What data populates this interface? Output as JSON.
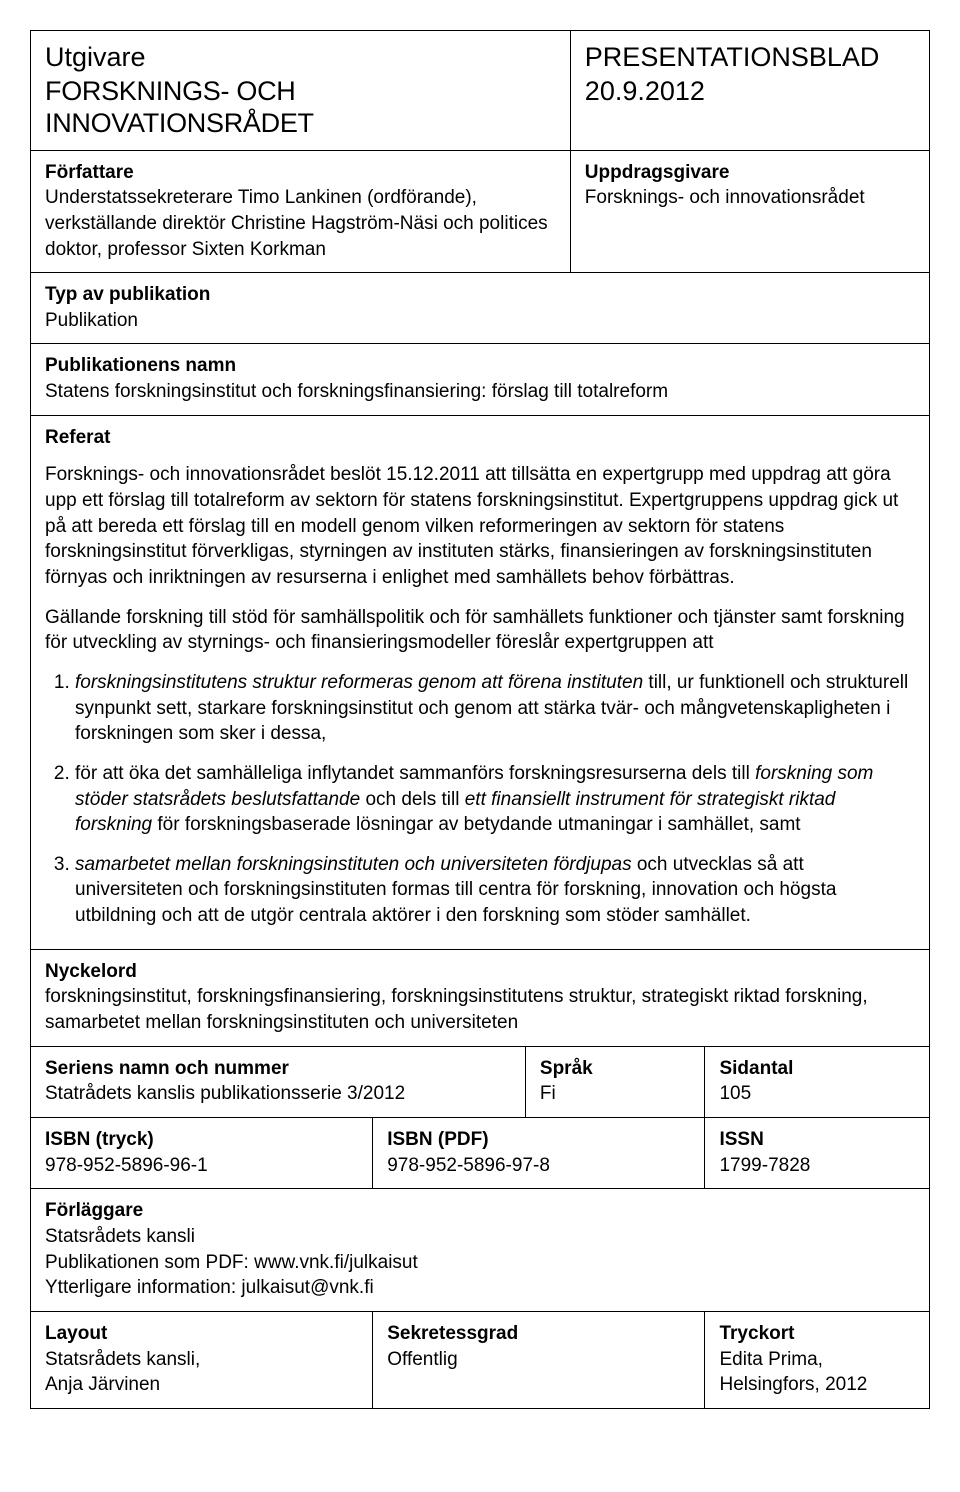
{
  "header": {
    "left_label": "Utgivare",
    "left_org": "FORSKNINGS- OCH INNOVATIONSRÅDET",
    "right_label": "PRESENTATIONSBLAD",
    "right_date": "20.9.2012"
  },
  "authors": {
    "label": "Författare",
    "text": "Understatssekreterare Timo Lankinen (ordförande), verkställande direktör Christine Hagström-Näsi och politices doktor, professor Sixten Korkman"
  },
  "commissioner": {
    "label": "Uppdragsgivare",
    "text": "Forsknings- och innovationsrådet"
  },
  "pubtype": {
    "label": "Typ av publikation",
    "value": "Publikation"
  },
  "pubname": {
    "label": "Publikationens namn",
    "value": "Statens forskningsinstitut och forskningsfinansiering: förslag till totalreform"
  },
  "referat": {
    "label": "Referat",
    "para1": "Forsknings- och innovationsrådet beslöt 15.12.2011 att tillsätta en expertgrupp med uppdrag att göra upp ett förslag till totalreform av sektorn för statens forskningsinstitut. Expertgruppens uppdrag gick ut på att bereda ett förslag till en modell genom vilken reformeringen av sektorn för statens forskningsinstitut förverkligas, styrningen av instituten stärks, finansieringen av forskningsinstituten förnyas och inriktningen av resurserna i enlighet med samhällets behov förbättras.",
    "para2": "Gällande forskning till stöd för samhällspolitik och för samhällets funktioner och tjänster samt forskning för utveckling av styrnings- och finansieringsmodeller föreslår expertgruppen att",
    "item1_italic": "forskningsinstitutens struktur reformeras genom att förena instituten",
    "item1_rest": " till, ur funktionell och strukturell synpunkt sett, starkare forskningsinstitut och genom att stärka tvär- och mångvetenskapligheten i forskningen som sker i dessa,",
    "item2_a": "för att öka det samhälleliga inflytandet sammanförs forskningsresurserna dels till ",
    "item2_i1": "forskning som stöder statsrådets beslutsfattande",
    "item2_b": " och dels till ",
    "item2_i2": "ett finansiellt instrument för strategiskt riktad forskning",
    "item2_c": " för forskningsbaserade lösningar av betydande utmaningar i samhället, samt",
    "item3_i": "samarbetet mellan forskningsinstituten och universiteten fördjupas",
    "item3_rest": " och utvecklas så att universiteten och forskningsinstituten formas till centra för forskning, innovation och högsta utbildning och att de utgör centrala aktörer i den forskning som stöder samhället."
  },
  "keywords": {
    "label": "Nyckelord",
    "text": "forskningsinstitut, forskningsfinansiering, forskningsinstitutens struktur, strategiskt riktad forskning, samarbetet mellan forskningsinstituten och universiteten"
  },
  "series": {
    "label": "Seriens namn och nummer",
    "value": "Statrådets kanslis publikationsserie 3/2012"
  },
  "language": {
    "label": "Språk",
    "value": "Fi"
  },
  "pages": {
    "label": "Sidantal",
    "value": "105"
  },
  "isbn_print": {
    "label": "ISBN (tryck)",
    "value": "978-952-5896-96-1"
  },
  "isbn_pdf": {
    "label": "ISBN (PDF)",
    "value": "978-952-5896-97-8"
  },
  "issn": {
    "label": "ISSN",
    "value": "1799-7828"
  },
  "publisher": {
    "label": "Förläggare",
    "line1": "Statsrådets kansli",
    "line2": "Publikationen som PDF: www.vnk.fi/julkaisut",
    "line3": "Ytterligare information: julkaisut@vnk.fi"
  },
  "layout": {
    "label": "Layout",
    "line1": "Statsrådets kansli,",
    "line2": "Anja Järvinen"
  },
  "confidentiality": {
    "label": "Sekretessgrad",
    "value": "Offentlig"
  },
  "print": {
    "label": "Tryckort",
    "line1": "Edita Prima,",
    "line2": "Helsingfors, 2012"
  }
}
